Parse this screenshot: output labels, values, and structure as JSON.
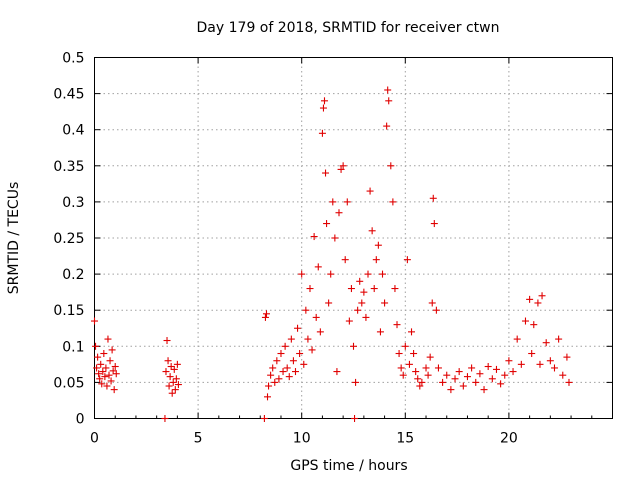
{
  "chart_data": {
    "type": "scatter",
    "title": "Day 179 of 2018, SRMTID for receiver ctwn",
    "xlabel": "GPS time / hours",
    "ylabel": "SRMTID / TECUs",
    "xlim": [
      0,
      25
    ],
    "ylim": [
      0,
      0.5
    ],
    "xticks": [
      0,
      5,
      10,
      15,
      20
    ],
    "xtick_labels": [
      "0",
      "5",
      "10",
      "15",
      "20"
    ],
    "yticks": [
      0,
      0.05,
      0.1,
      0.15,
      0.2,
      0.25,
      0.3,
      0.35,
      0.4,
      0.45,
      0.5
    ],
    "ytick_labels": [
      "0",
      "0.05",
      "0.1",
      "0.15",
      "0.2",
      "0.25",
      "0.3",
      "0.35",
      "0.4",
      "0.45",
      "0.5"
    ],
    "grid": true,
    "marker": "plus",
    "color": "#e00000",
    "series": [
      {
        "name": "SRMTID",
        "points": [
          [
            0.0,
            0.135
          ],
          [
            0.05,
            0.1
          ],
          [
            0.1,
            0.07
          ],
          [
            0.15,
            0.085
          ],
          [
            0.2,
            0.062
          ],
          [
            0.25,
            0.055
          ],
          [
            0.3,
            0.075
          ],
          [
            0.35,
            0.048
          ],
          [
            0.4,
            0.065
          ],
          [
            0.45,
            0.09
          ],
          [
            0.5,
            0.058
          ],
          [
            0.55,
            0.07
          ],
          [
            0.6,
            0.045
          ],
          [
            0.65,
            0.11
          ],
          [
            0.7,
            0.06
          ],
          [
            0.75,
            0.08
          ],
          [
            0.8,
            0.052
          ],
          [
            0.85,
            0.095
          ],
          [
            0.9,
            0.066
          ],
          [
            0.95,
            0.04
          ],
          [
            1.0,
            0.072
          ],
          [
            1.05,
            0.062
          ],
          [
            3.4,
            0.0
          ],
          [
            3.45,
            0.065
          ],
          [
            3.5,
            0.108
          ],
          [
            3.55,
            0.08
          ],
          [
            3.6,
            0.045
          ],
          [
            3.65,
            0.058
          ],
          [
            3.7,
            0.072
          ],
          [
            3.75,
            0.035
          ],
          [
            3.8,
            0.05
          ],
          [
            3.85,
            0.068
          ],
          [
            3.9,
            0.04
          ],
          [
            3.95,
            0.055
          ],
          [
            4.0,
            0.075
          ],
          [
            4.05,
            0.047
          ],
          [
            8.2,
            0.0
          ],
          [
            8.25,
            0.14
          ],
          [
            8.3,
            0.145
          ],
          [
            8.35,
            0.03
          ],
          [
            8.4,
            0.045
          ],
          [
            8.5,
            0.06
          ],
          [
            8.6,
            0.07
          ],
          [
            8.7,
            0.05
          ],
          [
            8.8,
            0.08
          ],
          [
            8.9,
            0.055
          ],
          [
            9.0,
            0.09
          ],
          [
            9.1,
            0.065
          ],
          [
            9.2,
            0.1
          ],
          [
            9.3,
            0.07
          ],
          [
            9.4,
            0.058
          ],
          [
            9.5,
            0.11
          ],
          [
            9.6,
            0.08
          ],
          [
            9.7,
            0.065
          ],
          [
            9.8,
            0.125
          ],
          [
            9.9,
            0.09
          ],
          [
            10.0,
            0.2
          ],
          [
            10.1,
            0.075
          ],
          [
            10.2,
            0.15
          ],
          [
            10.3,
            0.11
          ],
          [
            10.4,
            0.18
          ],
          [
            10.5,
            0.095
          ],
          [
            10.6,
            0.252
          ],
          [
            10.7,
            0.14
          ],
          [
            10.8,
            0.21
          ],
          [
            10.9,
            0.12
          ],
          [
            11.0,
            0.395
          ],
          [
            11.05,
            0.43
          ],
          [
            11.1,
            0.44
          ],
          [
            11.15,
            0.34
          ],
          [
            11.2,
            0.27
          ],
          [
            11.3,
            0.16
          ],
          [
            11.4,
            0.2
          ],
          [
            11.5,
            0.3
          ],
          [
            11.6,
            0.25
          ],
          [
            11.7,
            0.065
          ],
          [
            11.8,
            0.285
          ],
          [
            11.9,
            0.345
          ],
          [
            12.0,
            0.35
          ],
          [
            12.1,
            0.22
          ],
          [
            12.2,
            0.3
          ],
          [
            12.3,
            0.135
          ],
          [
            12.4,
            0.18
          ],
          [
            12.5,
            0.1
          ],
          [
            12.55,
            0.0
          ],
          [
            12.6,
            0.05
          ],
          [
            12.7,
            0.15
          ],
          [
            12.8,
            0.19
          ],
          [
            12.9,
            0.16
          ],
          [
            13.0,
            0.175
          ],
          [
            13.1,
            0.14
          ],
          [
            13.2,
            0.2
          ],
          [
            13.3,
            0.315
          ],
          [
            13.4,
            0.26
          ],
          [
            13.5,
            0.18
          ],
          [
            13.6,
            0.22
          ],
          [
            13.7,
            0.24
          ],
          [
            13.8,
            0.12
          ],
          [
            13.9,
            0.2
          ],
          [
            14.0,
            0.16
          ],
          [
            14.1,
            0.405
          ],
          [
            14.15,
            0.455
          ],
          [
            14.2,
            0.44
          ],
          [
            14.3,
            0.35
          ],
          [
            14.4,
            0.3
          ],
          [
            14.5,
            0.18
          ],
          [
            14.6,
            0.13
          ],
          [
            14.7,
            0.09
          ],
          [
            14.8,
            0.07
          ],
          [
            14.9,
            0.06
          ],
          [
            15.0,
            0.1
          ],
          [
            15.1,
            0.22
          ],
          [
            15.2,
            0.075
          ],
          [
            15.3,
            0.12
          ],
          [
            15.4,
            0.09
          ],
          [
            15.5,
            0.065
          ],
          [
            15.6,
            0.055
          ],
          [
            15.7,
            0.045
          ],
          [
            15.8,
            0.05
          ],
          [
            16.0,
            0.07
          ],
          [
            16.1,
            0.06
          ],
          [
            16.2,
            0.085
          ],
          [
            16.3,
            0.16
          ],
          [
            16.35,
            0.305
          ],
          [
            16.4,
            0.27
          ],
          [
            16.5,
            0.15
          ],
          [
            16.6,
            0.07
          ],
          [
            16.8,
            0.05
          ],
          [
            17.0,
            0.06
          ],
          [
            17.2,
            0.04
          ],
          [
            17.4,
            0.055
          ],
          [
            17.6,
            0.065
          ],
          [
            17.8,
            0.045
          ],
          [
            18.0,
            0.058
          ],
          [
            18.2,
            0.07
          ],
          [
            18.4,
            0.05
          ],
          [
            18.6,
            0.062
          ],
          [
            18.8,
            0.04
          ],
          [
            19.0,
            0.072
          ],
          [
            19.2,
            0.055
          ],
          [
            19.4,
            0.068
          ],
          [
            19.6,
            0.048
          ],
          [
            19.8,
            0.06
          ],
          [
            20.0,
            0.08
          ],
          [
            20.2,
            0.065
          ],
          [
            20.4,
            0.11
          ],
          [
            20.6,
            0.075
          ],
          [
            20.8,
            0.135
          ],
          [
            21.0,
            0.165
          ],
          [
            21.1,
            0.09
          ],
          [
            21.2,
            0.13
          ],
          [
            21.4,
            0.16
          ],
          [
            21.5,
            0.075
          ],
          [
            21.6,
            0.17
          ],
          [
            21.8,
            0.105
          ],
          [
            22.0,
            0.08
          ],
          [
            22.2,
            0.07
          ],
          [
            22.4,
            0.11
          ],
          [
            22.6,
            0.06
          ],
          [
            22.8,
            0.085
          ],
          [
            22.9,
            0.05
          ]
        ]
      }
    ]
  }
}
